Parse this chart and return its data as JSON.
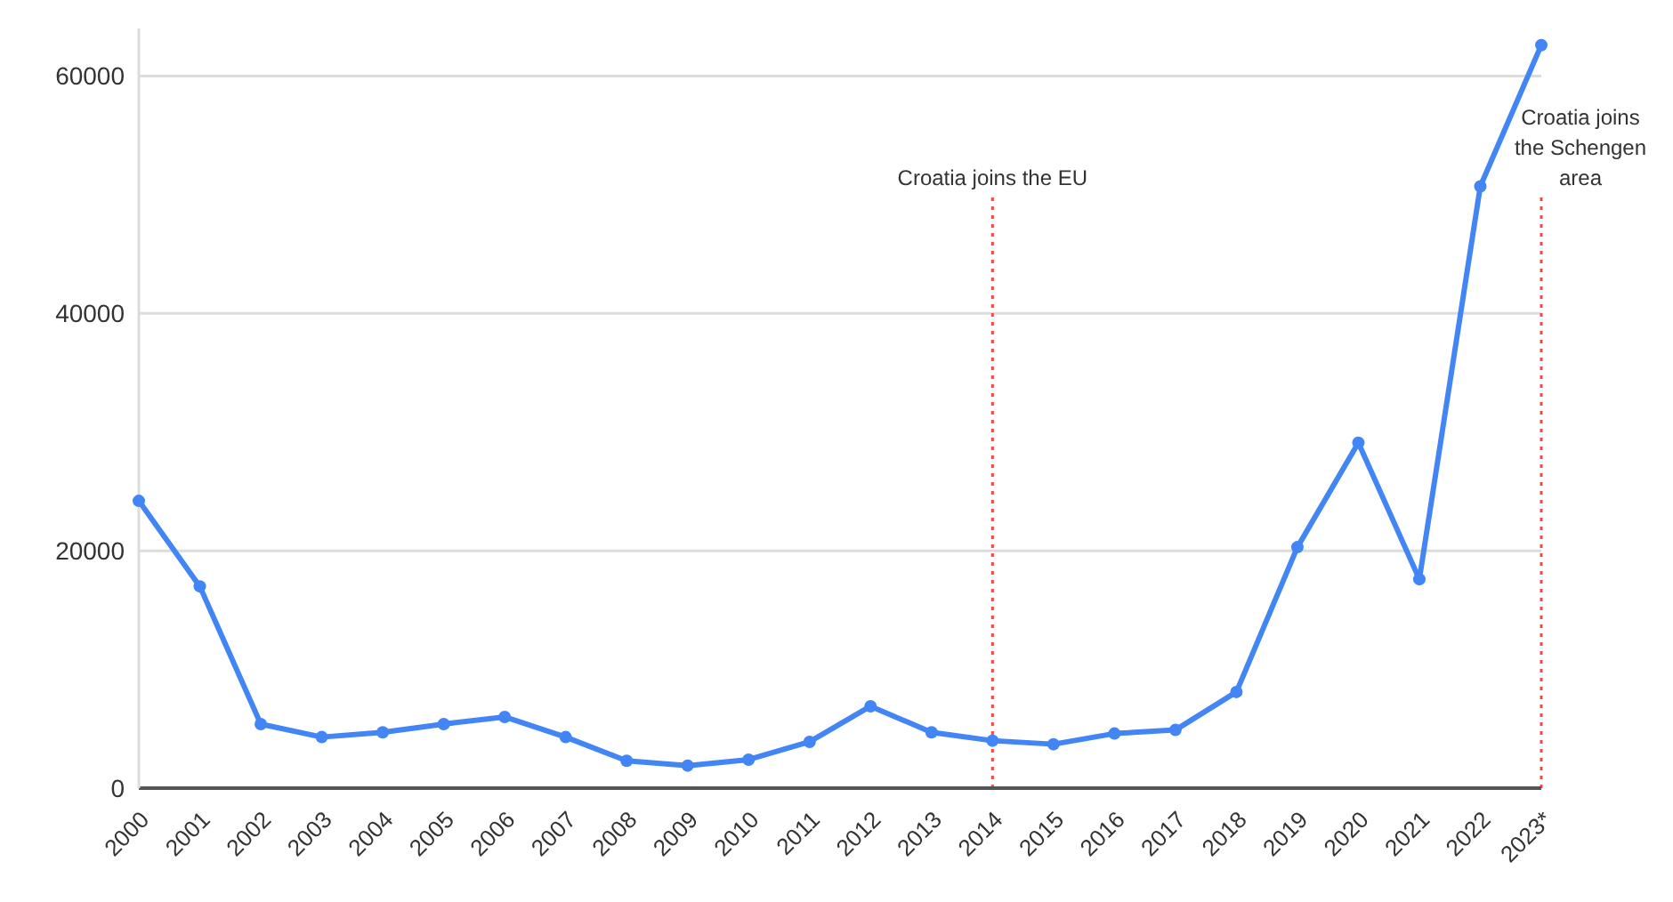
{
  "chart_data": {
    "type": "line",
    "categories": [
      "2000",
      "2001",
      "2002",
      "2003",
      "2004",
      "2005",
      "2006",
      "2007",
      "2008",
      "2009",
      "2010",
      "2011",
      "2012",
      "2013",
      "2014",
      "2015",
      "2016",
      "2017",
      "2018",
      "2019",
      "2020",
      "2021",
      "2022",
      "2023*"
    ],
    "series": [
      {
        "color": "#4285f4",
        "values": [
          24200,
          17000,
          5400,
          4300,
          4700,
          5400,
          6000,
          4300,
          2300,
          1900,
          2400,
          3900,
          6900,
          4700,
          4000,
          3700,
          4600,
          4900,
          8100,
          20300,
          29100,
          17600,
          50700,
          62600
        ]
      }
    ],
    "ylim": [
      0,
      64000
    ],
    "yticks": [
      0,
      20000,
      40000,
      60000
    ],
    "grid": "y",
    "marker": "circle",
    "line_style": "solid",
    "ref_lines": [
      {
        "axis": "x",
        "value": "2014",
        "label": "Croatia joins the EU",
        "color": "#ff4444",
        "line_style": "dotted"
      },
      {
        "axis": "x",
        "value": "2023*",
        "label": "Croatia joins the Schengen area",
        "color": "#ff4444",
        "line_style": "dotted"
      }
    ]
  }
}
